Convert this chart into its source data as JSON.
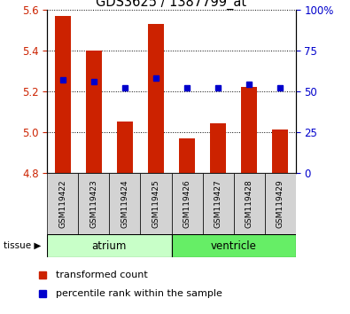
{
  "title": "GDS3625 / 1387799_at",
  "samples": [
    "GSM119422",
    "GSM119423",
    "GSM119424",
    "GSM119425",
    "GSM119426",
    "GSM119427",
    "GSM119428",
    "GSM119429"
  ],
  "red_values": [
    5.57,
    5.4,
    5.05,
    5.53,
    4.97,
    5.04,
    5.22,
    5.01
  ],
  "blue_values": [
    5.255,
    5.245,
    5.215,
    5.265,
    5.215,
    5.215,
    5.235,
    5.215
  ],
  "ymin": 4.8,
  "ymax": 5.6,
  "yticks": [
    4.8,
    5.0,
    5.2,
    5.4,
    5.6
  ],
  "right_yticks": [
    0,
    25,
    50,
    75,
    100
  ],
  "right_yticklabels": [
    "0",
    "25",
    "50",
    "75",
    "100%"
  ],
  "atrium_color": "#c8ffc8",
  "ventricle_color": "#66ee66",
  "sample_box_color": "#d3d3d3",
  "red_color": "#cc2200",
  "blue_color": "#0000cc",
  "bar_bottom": 4.8,
  "bar_width": 0.5,
  "blue_marker_size": 5,
  "atrium_label": "atrium",
  "ventricle_label": "ventricle",
  "tissue_label": "tissue",
  "legend_red": "transformed count",
  "legend_blue": "percentile rank within the sample"
}
